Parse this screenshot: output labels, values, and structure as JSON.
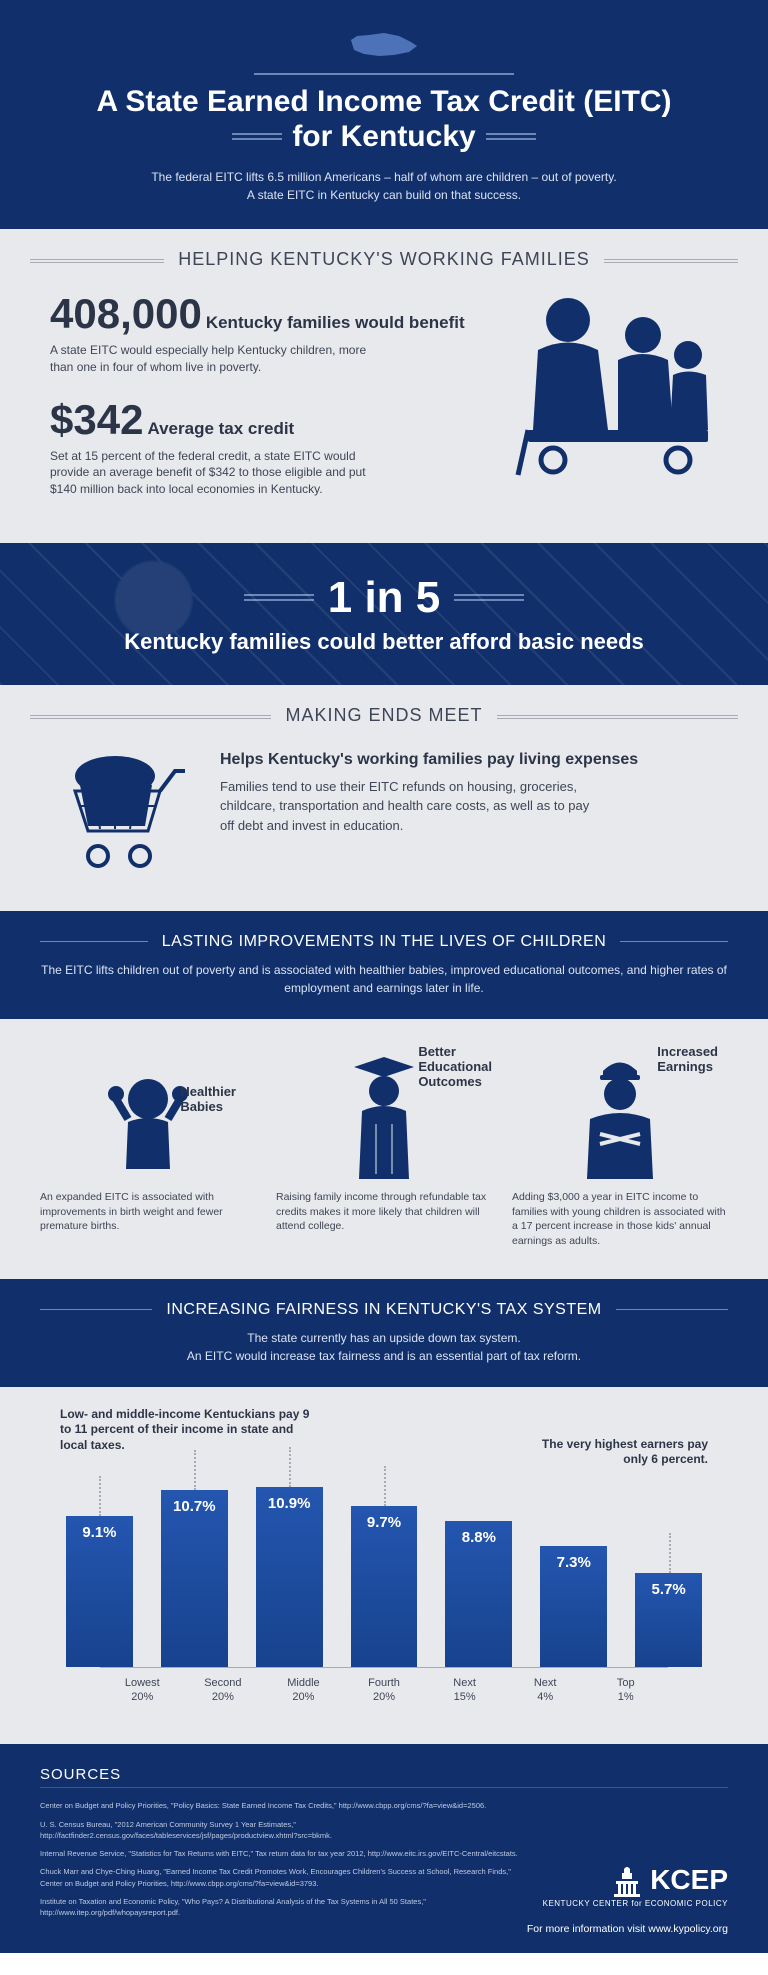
{
  "header": {
    "title_l1": "A State Earned Income Tax Credit (EITC)",
    "title_l2": "for Kentucky",
    "intro": "The federal EITC lifts 6.5 million Americans – half of whom are children – out of poverty.\nA state EITC in Kentucky can build on that success."
  },
  "sec1": {
    "title": "HELPING KENTUCKY'S WORKING FAMILIES",
    "stat1_num": "408,000",
    "stat1_label": "Kentucky families would benefit",
    "stat1_body": "A state EITC would especially help Kentucky children, more than one in four of whom live in poverty.",
    "stat2_num": "$342",
    "stat2_label": "Average tax credit",
    "stat2_body": "Set at 15 percent of the federal credit, a state EITC would provide an average benefit of $342 to those eligible and put $140 million back into local economies in Kentucky."
  },
  "banner": {
    "big": "1 in 5",
    "sub": "Kentucky families could better afford basic needs"
  },
  "sec2": {
    "title": "MAKING ENDS MEET",
    "heading": "Helps Kentucky's working families pay living expenses",
    "body": "Families tend to use their EITC refunds on housing, groceries, childcare, transportation and health care costs, as well as to pay off debt and invest in education."
  },
  "sec3": {
    "title": "LASTING IMPROVEMENTS IN THE LIVES OF CHILDREN",
    "intro": "The EITC lifts children out of poverty and is associated with healthier babies, improved educational outcomes, and higher rates of employment and earnings later in life.",
    "cols": [
      {
        "h": "Healthier\nBabies",
        "p": "An expanded EITC is associated with improvements in birth weight and fewer premature births."
      },
      {
        "h": "Better\nEducational\nOutcomes",
        "p": "Raising family income through refundable tax credits makes it more likely that children will attend college."
      },
      {
        "h": "Increased\nEarnings",
        "p": "Adding $3,000 a year in EITC income to families with young children is associated with a 17 percent increase in those kids' annual earnings as adults."
      }
    ]
  },
  "sec4": {
    "title": "INCREASING FAIRNESS IN KENTUCKY'S TAX SYSTEM",
    "intro": "The state currently has an upside down tax system.\nAn EITC would increase tax fairness and is an essential part of tax reform.",
    "note_left": "Low- and middle-income Kentuckians pay 9 to 11 percent of their income in state and local taxes.",
    "note_right": "The very highest earners pay only 6 percent.",
    "chart": {
      "type": "bar",
      "ylim": 11.5,
      "bar_color": "#17428d",
      "background_color": "#e8e9ec",
      "categories": [
        "Lowest\n20%",
        "Second\n20%",
        "Middle\n20%",
        "Fourth\n20%",
        "Next\n15%",
        "Next\n4%",
        "Top\n1%"
      ],
      "values": [
        9.1,
        10.7,
        10.9,
        9.7,
        8.8,
        7.3,
        5.7
      ],
      "labels": [
        "9.1%",
        "10.7%",
        "10.9%",
        "9.7%",
        "8.8%",
        "7.3%",
        "5.7%"
      ],
      "dots_on": [
        0,
        1,
        2,
        3,
        6
      ]
    }
  },
  "sources": {
    "title": "SOURCES",
    "items": [
      "Center on Budget and Policy Priorities, \"Policy Basics: State Earned Income Tax Credits,\" http://www.cbpp.org/cms/?fa=view&id=2506.",
      "U. S. Census Bureau, \"2012 American Community Survey 1 Year Estimates,\" http://factfinder2.census.gov/faces/tableservices/jsf/pages/productview.xhtml?src=bkmk.",
      "Internal Revenue Service, \"Statistics for Tax Returns with EITC,\" Tax return data for tax year 2012, http://www.eitc.irs.gov/EITC-Central/eitcstats.",
      "Chuck Marr and Chye-Ching Huang, \"Earned Income Tax Credit Promotes Work, Encourages Children's Success at School, Research Finds,\" Center on Budget and Policy Priorities, http://www.cbpp.org/cms/?fa=view&id=3793.",
      "Institute on Taxation and Economic Policy, \"Who Pays? A Distributional Analysis of the Tax Systems in All 50 States,\" http://www.itep.org/pdf/whopaysreport.pdf."
    ],
    "org": "KCEP",
    "org_sub": "KENTUCKY CENTER for ECONOMIC POLICY",
    "more": "For more information visit www.kypolicy.org"
  }
}
